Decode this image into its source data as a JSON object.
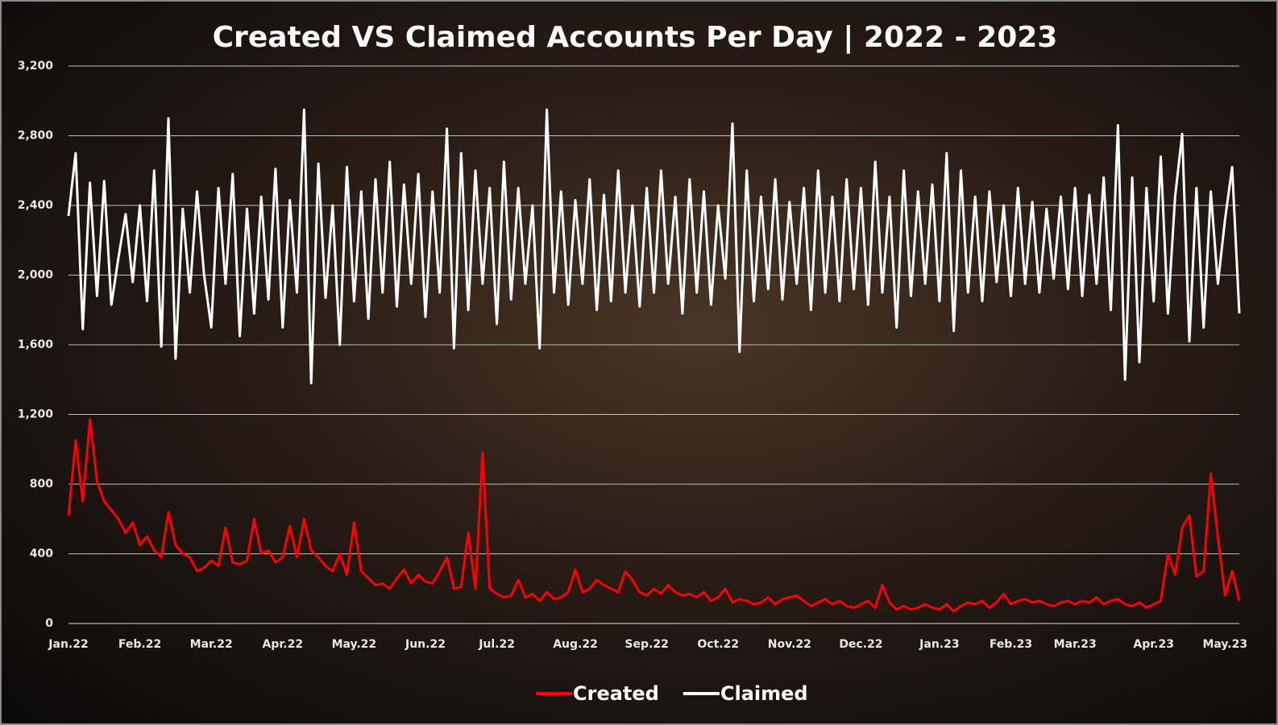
{
  "chart_data": {
    "type": "line",
    "title": "Created VS Claimed Accounts Per Day | 2022 - 2023",
    "categories": [
      "Jan.22",
      null,
      null,
      null,
      null,
      null,
      null,
      null,
      null,
      null,
      "Feb.22",
      null,
      null,
      null,
      null,
      null,
      null,
      null,
      null,
      null,
      "Mar.22",
      null,
      null,
      null,
      null,
      null,
      null,
      null,
      null,
      null,
      "Apr.22",
      null,
      null,
      null,
      null,
      null,
      null,
      null,
      null,
      null,
      "May.22",
      null,
      null,
      null,
      null,
      null,
      null,
      null,
      null,
      null,
      "Jun.22",
      null,
      null,
      null,
      null,
      null,
      null,
      null,
      null,
      null,
      "Jul.22",
      null,
      null,
      null,
      null,
      null,
      null,
      null,
      null,
      null,
      null,
      "Aug.22",
      null,
      null,
      null,
      null,
      null,
      null,
      null,
      null,
      null,
      "Sep.22",
      null,
      null,
      null,
      null,
      null,
      null,
      null,
      null,
      null,
      "Oct.22",
      null,
      null,
      null,
      null,
      null,
      null,
      null,
      null,
      null,
      "Nov.22",
      null,
      null,
      null,
      null,
      null,
      null,
      null,
      null,
      null,
      "Dec.22",
      null,
      null,
      null,
      null,
      null,
      null,
      null,
      null,
      null,
      null,
      "Jan.23",
      null,
      null,
      null,
      null,
      null,
      null,
      null,
      null,
      null,
      "Feb.23",
      null,
      null,
      null,
      null,
      null,
      null,
      null,
      null,
      "Mar.23",
      null,
      null,
      null,
      null,
      null,
      null,
      null,
      null,
      null,
      null,
      "Apr.23",
      null,
      null,
      null,
      null,
      null,
      null,
      null,
      null,
      null,
      "May.23",
      null,
      null
    ],
    "series": [
      {
        "name": "Created",
        "color": "#ff0000",
        "values": [
          620,
          1050,
          700,
          1170,
          820,
          700,
          650,
          600,
          520,
          580,
          450,
          500,
          420,
          380,
          640,
          450,
          400,
          380,
          300,
          320,
          360,
          330,
          550,
          350,
          340,
          360,
          600,
          400,
          420,
          350,
          380,
          560,
          380,
          600,
          420,
          380,
          330,
          300,
          400,
          280,
          580,
          300,
          260,
          220,
          230,
          200,
          260,
          310,
          230,
          280,
          240,
          230,
          300,
          380,
          200,
          210,
          520,
          200,
          980,
          200,
          170,
          150,
          160,
          250,
          150,
          170,
          130,
          180,
          140,
          150,
          180,
          310,
          180,
          200,
          250,
          220,
          200,
          180,
          300,
          250,
          180,
          160,
          200,
          170,
          220,
          180,
          160,
          170,
          150,
          180,
          130,
          150,
          200,
          120,
          140,
          130,
          110,
          120,
          150,
          110,
          140,
          150,
          160,
          130,
          100,
          120,
          140,
          110,
          130,
          100,
          90,
          110,
          130,
          90,
          220,
          120,
          80,
          100,
          80,
          90,
          110,
          90,
          80,
          110,
          70,
          100,
          120,
          110,
          130,
          90,
          120,
          170,
          110,
          130,
          140,
          120,
          130,
          110,
          100,
          120,
          130,
          110,
          130,
          120,
          150,
          110,
          130,
          140,
          110,
          100,
          120,
          90,
          110,
          130,
          400,
          280,
          550,
          620,
          270,
          300,
          860,
          500,
          160,
          300,
          130
        ]
      },
      {
        "name": "Claimed",
        "color": "#ffffff",
        "values": [
          2340,
          2700,
          1690,
          2530,
          1880,
          2540,
          1830,
          2100,
          2350,
          1960,
          2400,
          1850,
          2600,
          1590,
          2900,
          1520,
          2380,
          1900,
          2480,
          2000,
          1700,
          2500,
          1950,
          2580,
          1650,
          2380,
          1780,
          2450,
          1860,
          2610,
          1700,
          2430,
          1900,
          2950,
          1380,
          2640,
          1870,
          2400,
          1600,
          2620,
          1850,
          2480,
          1750,
          2550,
          1900,
          2650,
          1820,
          2520,
          1950,
          2580,
          1760,
          2480,
          1900,
          2840,
          1580,
          2700,
          1800,
          2600,
          1950,
          2500,
          1720,
          2650,
          1860,
          2500,
          1950,
          2400,
          1580,
          2950,
          1900,
          2480,
          1830,
          2430,
          1950,
          2550,
          1800,
          2460,
          1850,
          2600,
          1900,
          2400,
          1820,
          2500,
          1900,
          2600,
          1950,
          2450,
          1780,
          2550,
          1900,
          2480,
          1830,
          2400,
          1980,
          2870,
          1560,
          2600,
          1850,
          2450,
          1920,
          2550,
          1860,
          2420,
          1950,
          2500,
          1800,
          2600,
          1900,
          2450,
          1850,
          2550,
          1920,
          2500,
          1830,
          2650,
          1900,
          2450,
          1700,
          2600,
          1880,
          2480,
          1950,
          2520,
          1850,
          2700,
          1680,
          2600,
          1900,
          2450,
          1850,
          2480,
          1960,
          2400,
          1880,
          2500,
          1950,
          2420,
          1900,
          2380,
          1980,
          2450,
          1920,
          2500,
          1880,
          2460,
          1950,
          2560,
          1800,
          2860,
          1400,
          2560,
          1500,
          2500,
          1850,
          2680,
          1780,
          2450,
          2810,
          1620,
          2500,
          1700,
          2480,
          1950,
          2320,
          2620,
          1780
        ]
      }
    ],
    "ylim": [
      0,
      3200
    ],
    "yticks": [
      0,
      400,
      800,
      {
        "value": 1200,
        "label": "1,200"
      },
      {
        "value": 1600,
        "label": "1,600"
      },
      {
        "value": 2000,
        "label": "2,000"
      },
      {
        "value": 2400,
        "label": "2,400"
      },
      {
        "value": 2800,
        "label": "2,800"
      },
      {
        "value": 3200,
        "label": "3,200"
      }
    ],
    "grid": true,
    "legend": "bottom"
  }
}
